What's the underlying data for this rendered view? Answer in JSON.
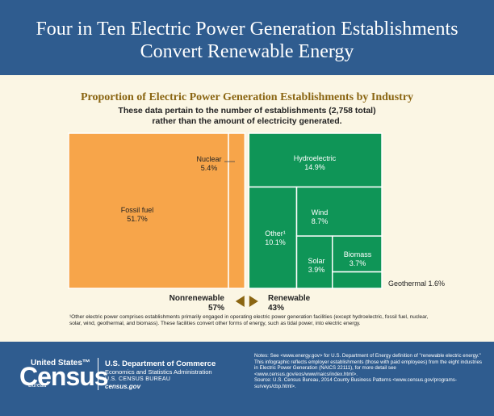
{
  "header": {
    "title_line1": "Four in Ten Electric Power Generation Establishments",
    "title_line2": "Convert Renewable Energy"
  },
  "chart_data": {
    "type": "treemap",
    "title": "Proportion of Electric Power Generation Establishments by Industry",
    "subtitle_line1": "These data pertain to the number of establishments (2,758 total)",
    "subtitle_line2": "rather than the amount of electricity generated.",
    "groups": [
      {
        "name": "Nonrenewable",
        "percent_label": "57%",
        "value": 57,
        "color": "#f7a54a",
        "items": [
          {
            "name": "Fossil fuel",
            "value": 51.7,
            "label": "51.7%"
          },
          {
            "name": "Nuclear",
            "value": 5.4,
            "label": "5.4%"
          }
        ]
      },
      {
        "name": "Renewable",
        "percent_label": "43%",
        "value": 43,
        "color": "#0f9557",
        "items": [
          {
            "name": "Hydroelectric",
            "value": 14.9,
            "label": "14.9%"
          },
          {
            "name": "Other¹",
            "value": 10.1,
            "label": "10.1%"
          },
          {
            "name": "Wind",
            "value": 8.7,
            "label": "8.7%"
          },
          {
            "name": "Solar",
            "value": 3.9,
            "label": "3.9%"
          },
          {
            "name": "Biomass",
            "value": 3.7,
            "label": "3.7%"
          },
          {
            "name": "Geothermal",
            "value": 1.6,
            "label": "Geothermal 1.6%"
          }
        ]
      }
    ]
  },
  "footnote": "¹Other electric power comprises establishments primarily engaged in operating electric power generation facilities (except hydroelectric, fossil fuel, nuclear, solar, wind, geothermal, and biomass). These facilities convert other forms of energy, such as tidal power, into electric energy.",
  "footer": {
    "logo_united": "United States™",
    "logo_census": "Census",
    "logo_bureau": "Bureau",
    "dept": "U.S. Department of Commerce",
    "esa": "Economics and Statistics Administration",
    "bureau": "U.S. CENSUS BUREAU",
    "url": "census.gov",
    "notes": [
      "Notes: See <www.energy.gov> for U.S. Department of Energy definition of \"renewable electric energy.\"",
      "This infographic reflects employer establishments (those with paid employees) from the eight industries in Electric Power Generation (NAICS 22111), for more detail see <www.census.gov/eos/www/naics/index.html>.",
      "Source: U.S. Census Bureau, 2014 County Business Patterns <www.census.gov/programs-surveys/cbp.html>."
    ]
  }
}
